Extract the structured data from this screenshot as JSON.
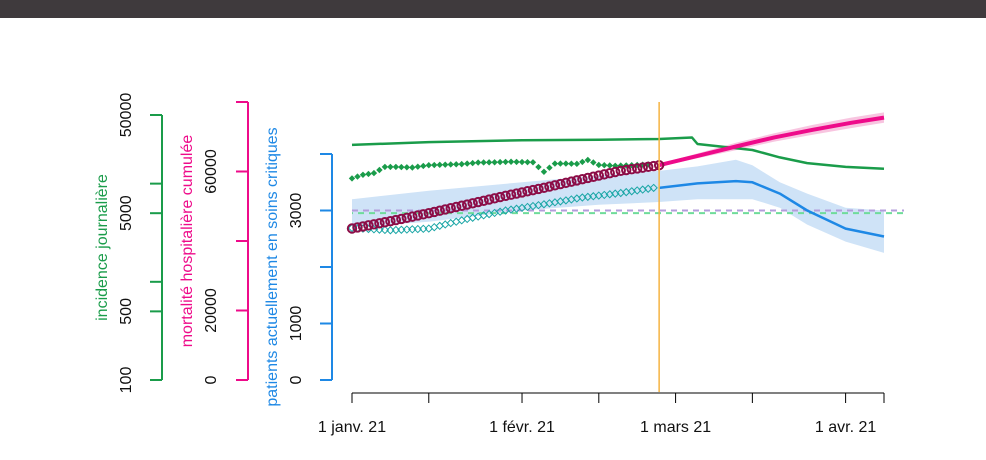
{
  "chart_data": {
    "type": "line",
    "title": "",
    "x_axis": {
      "type": "date",
      "range": [
        "2020-12-25",
        "2021-04-10"
      ],
      "tick_labels": [
        {
          "date": "2021-01-01",
          "label": "1 janv. 21"
        },
        {
          "date": "2021-02-01",
          "label": "1 févr. 21"
        },
        {
          "date": "2021-03-01",
          "label": "1 mars 21"
        },
        {
          "date": "2021-04-01",
          "label": "1 avr. 21"
        }
      ],
      "minor_ticks": [
        "2021-01-15",
        "2021-02-15",
        "2021-03-15",
        "2021-04-15"
      ]
    },
    "y_axes": [
      {
        "label": "incidence journalière",
        "scale": "log",
        "range": [
          100,
          50000
        ],
        "ticks": [
          100,
          500,
          5000,
          50000
        ],
        "minor_ticks": [
          1000,
          10000
        ],
        "color": "#1a9c4a"
      },
      {
        "label": "mortalité hospitalière cumulée",
        "scale": "linear",
        "range": [
          0,
          80000
        ],
        "ticks": [
          0,
          20000,
          60000
        ],
        "minor_ticks": [
          40000,
          80000
        ],
        "color": "#ee0b8a"
      },
      {
        "label": "patients actuellement en soins critiques",
        "scale": "linear",
        "range": [
          0,
          4000
        ],
        "ticks": [
          0,
          1000,
          3000
        ],
        "minor_ticks": [
          2000,
          4000
        ],
        "color": "#1e88e5"
      }
    ],
    "vline": {
      "date": "2021-02-26",
      "color": "#f5b342"
    },
    "hlines": [
      {
        "axis": "critical",
        "value": 3000,
        "color": "#b39ddb"
      },
      {
        "axis": "incidence",
        "value": 5000,
        "color": "#6fdc9a"
      }
    ],
    "series": [
      {
        "axis": "incidence",
        "role": "fit",
        "color": "#1a9c4a",
        "x": [
          "2021-01-01",
          "2021-01-15",
          "2021-02-01",
          "2021-02-15",
          "2021-02-26",
          "2021-03-04",
          "2021-03-05",
          "2021-03-15",
          "2021-03-20",
          "2021-03-25",
          "2021-04-01",
          "2021-04-08"
        ],
        "y": [
          24800,
          26500,
          27700,
          28000,
          28500,
          29500,
          25300,
          22000,
          18500,
          16200,
          14800,
          14200
        ]
      },
      {
        "axis": "incidence",
        "role": "observed",
        "color": "#1a9c4a",
        "x": [
          "2021-01-01",
          "2021-01-03",
          "2021-01-05",
          "2021-01-07",
          "2021-01-09",
          "2021-01-12",
          "2021-01-15",
          "2021-01-18",
          "2021-01-21",
          "2021-01-24",
          "2021-01-27",
          "2021-01-30",
          "2021-02-01",
          "2021-02-03",
          "2021-02-05",
          "2021-02-07",
          "2021-02-09",
          "2021-02-11",
          "2021-02-13",
          "2021-02-15",
          "2021-02-18",
          "2021-02-21",
          "2021-02-24"
        ],
        "y": [
          11300,
          12300,
          12800,
          14800,
          14800,
          14600,
          15400,
          15600,
          15800,
          16400,
          16500,
          16700,
          16600,
          16500,
          13200,
          16000,
          16000,
          15900,
          17400,
          15500,
          15200,
          15400,
          15700
        ]
      },
      {
        "axis": "critical",
        "role": "observed",
        "color": "#1aa6a6",
        "x": [
          "2021-01-01",
          "2021-01-08",
          "2021-01-15",
          "2021-01-22",
          "2021-01-29",
          "2021-02-05",
          "2021-02-12",
          "2021-02-19",
          "2021-02-25"
        ],
        "y": [
          2690,
          2650,
          2680,
          2850,
          3000,
          3110,
          3230,
          3310,
          3400
        ]
      },
      {
        "axis": "mortality",
        "role": "observed",
        "color": "#8c0d47",
        "x": [
          "2021-01-01",
          "2021-01-08",
          "2021-01-15",
          "2021-01-22",
          "2021-01-29",
          "2021-02-05",
          "2021-02-12",
          "2021-02-19",
          "2021-02-26"
        ],
        "y": [
          43600,
          45700,
          48000,
          50500,
          53000,
          55300,
          57800,
          60200,
          61800
        ]
      },
      {
        "axis": "mortality",
        "role": "fit",
        "color": "#ee0b8a",
        "x": [
          "2021-02-26",
          "2021-03-05",
          "2021-03-12",
          "2021-03-19",
          "2021-03-26",
          "2021-04-02",
          "2021-04-08"
        ],
        "y": [
          61800,
          64500,
          67200,
          69800,
          72000,
          74000,
          75500
        ],
        "band_upper": [
          62200,
          65200,
          68300,
          71000,
          73400,
          75500,
          77000
        ],
        "band_lower": [
          61400,
          63800,
          66100,
          68600,
          70600,
          72500,
          74000
        ]
      },
      {
        "axis": "critical",
        "role": "fit",
        "color": "#1e88e5",
        "x": [
          "2021-02-26",
          "2021-03-05",
          "2021-03-12",
          "2021-03-15",
          "2021-03-20",
          "2021-03-25",
          "2021-04-01",
          "2021-04-08"
        ],
        "y": [
          3400,
          3480,
          3520,
          3500,
          3300,
          3000,
          2680,
          2540
        ],
        "band_upper": [
          3700,
          3780,
          3900,
          3800,
          3500,
          3300,
          3050,
          3000
        ],
        "band_lower": [
          3150,
          3200,
          3200,
          3200,
          3050,
          2750,
          2450,
          2250
        ]
      },
      {
        "axis": "critical",
        "role": "band_history",
        "color": "#cfe3f7",
        "x": [
          "2021-01-01",
          "2021-01-15",
          "2021-02-01",
          "2021-02-15",
          "2021-02-26"
        ],
        "band_upper": [
          3200,
          3350,
          3500,
          3620,
          3700
        ],
        "band_lower": [
          2700,
          2800,
          3000,
          3100,
          3150
        ]
      }
    ]
  }
}
